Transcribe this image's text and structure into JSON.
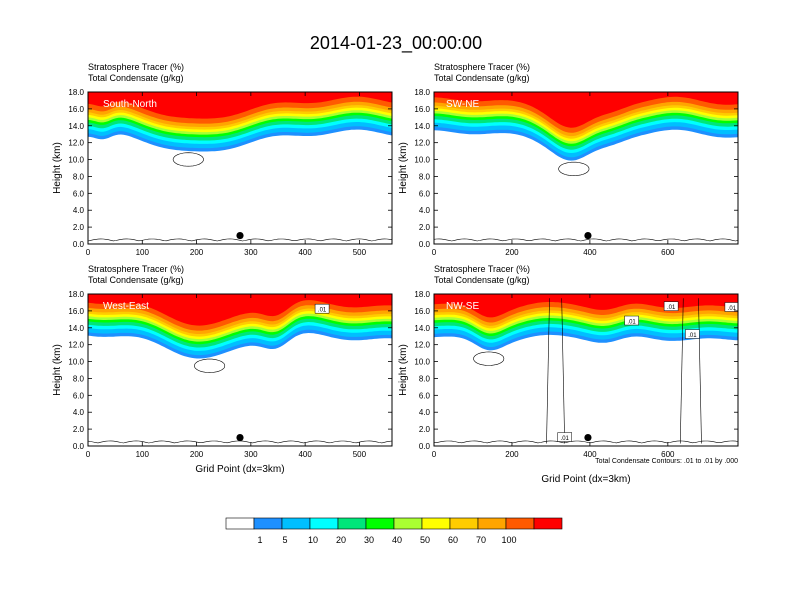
{
  "title": "2014-01-23_00:00:00",
  "colors": {
    "bin_colors": [
      "#ffffff",
      "#1e90ff",
      "#00bfff",
      "#00ffff",
      "#00e67a",
      "#00ff00",
      "#aaff32",
      "#ffff00",
      "#ffcc00",
      "#ffa500",
      "#ff5a00",
      "#ff0000"
    ],
    "contour": "#000000",
    "marker": "#000000"
  },
  "colorbar": {
    "labels": [
      "1",
      "5",
      "10",
      "20",
      "30",
      "40",
      "50",
      "60",
      "70",
      "100"
    ]
  },
  "chart_data": [
    {
      "type": "heatmap",
      "panel_label": "South-North",
      "subtitle_line1": "Stratosphere Tracer   (%)",
      "subtitle_line2": "Total Condensate   (g/kg)",
      "ylabel": "Height (km)",
      "xlabel": "",
      "ylim": [
        0,
        18
      ],
      "xlim": [
        0,
        560
      ],
      "x_ticks": [
        0,
        100,
        200,
        300,
        400,
        500
      ],
      "y_ticks": [
        "0.0",
        "2.0",
        "4.0",
        "6.0",
        "8.0",
        "10.0",
        "12.0",
        "14.0",
        "16.0",
        "18.0"
      ],
      "marker_x": 280,
      "marker_height": 1.0,
      "contour_labels": [],
      "footnote": ""
    },
    {
      "type": "heatmap",
      "panel_label": "SW-NE",
      "subtitle_line1": "Stratosphere Tracer   (%)",
      "subtitle_line2": "Total Condensate   (g/kg)",
      "ylabel": "Height (km)",
      "xlabel": "",
      "ylim": [
        0,
        18
      ],
      "xlim": [
        0,
        780
      ],
      "x_ticks": [
        0,
        200,
        400,
        600
      ],
      "y_ticks": [
        "0.0",
        "2.0",
        "4.0",
        "6.0",
        "8.0",
        "10.0",
        "12.0",
        "14.0",
        "16.0",
        "18.0"
      ],
      "marker_x": 395,
      "marker_height": 1.0,
      "contour_labels": [],
      "footnote": ""
    },
    {
      "type": "heatmap",
      "panel_label": "West-East",
      "subtitle_line1": "Stratosphere Tracer   (%)",
      "subtitle_line2": "Total Condensate   (g/kg)",
      "ylabel": "Height (km)",
      "xlabel": "Grid Point (dx=3km)",
      "ylim": [
        0,
        18
      ],
      "xlim": [
        0,
        560
      ],
      "x_ticks": [
        0,
        100,
        200,
        300,
        400,
        500
      ],
      "y_ticks": [
        "0.0",
        "2.0",
        "4.0",
        "6.0",
        "8.0",
        "10.0",
        "12.0",
        "14.0",
        "16.0",
        "18.0"
      ],
      "marker_x": 280,
      "marker_height": 1.0,
      "contour_labels": [
        ".01"
      ],
      "footnote": ""
    },
    {
      "type": "heatmap",
      "panel_label": "NW-SE",
      "subtitle_line1": "Stratosphere Tracer   (%)",
      "subtitle_line2": "Total Condensate   (g/kg)",
      "ylabel": "Height (km)",
      "xlabel": "Grid Point (dx=3km)",
      "ylim": [
        0,
        18
      ],
      "xlim": [
        0,
        780
      ],
      "x_ticks": [
        0,
        200,
        400,
        600
      ],
      "y_ticks": [
        "0.0",
        "2.0",
        "4.0",
        "6.0",
        "8.0",
        "10.0",
        "12.0",
        "14.0",
        "16.0",
        "18.0"
      ],
      "marker_x": 395,
      "marker_height": 1.0,
      "contour_labels": [
        ".01",
        ".01",
        ".01",
        ".01",
        ".01"
      ],
      "footnote": "Total Condensate Contours: .01 to .01 by .000"
    }
  ]
}
